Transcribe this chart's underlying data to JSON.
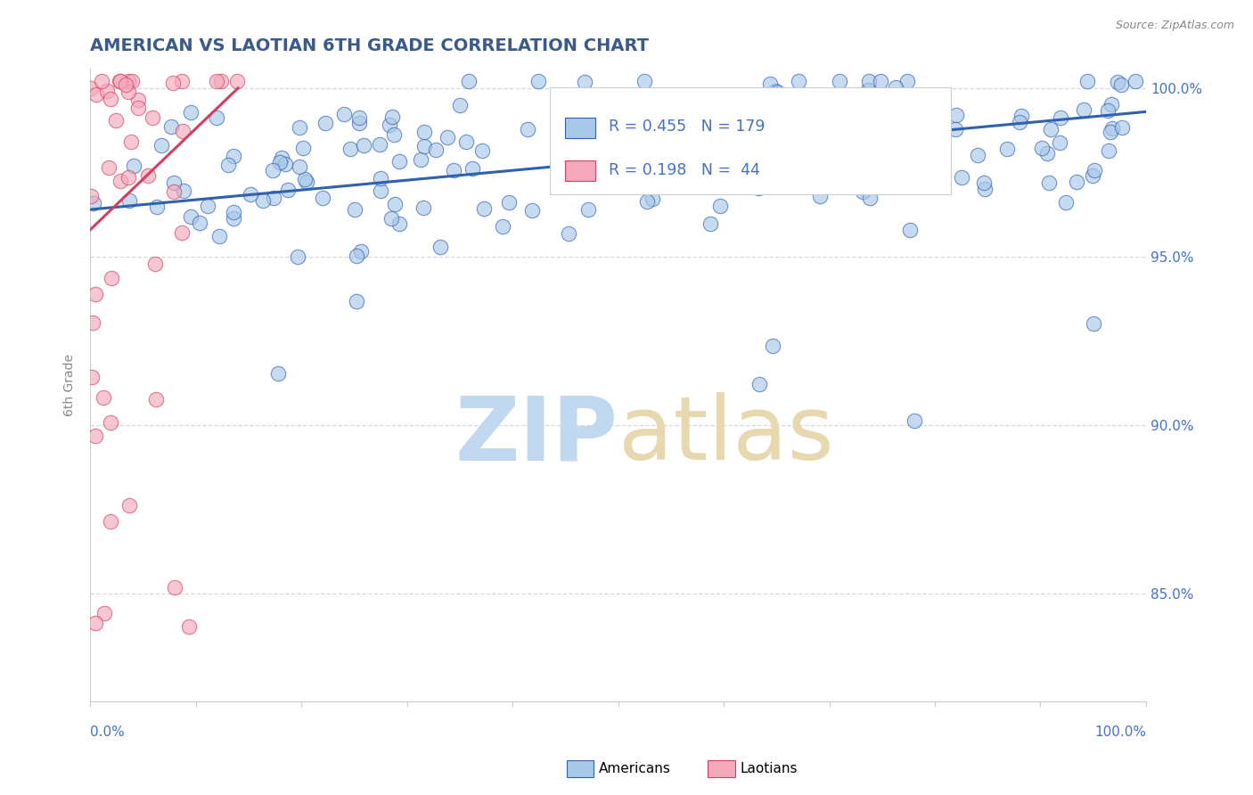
{
  "title": "AMERICAN VS LAOTIAN 6TH GRADE CORRELATION CHART",
  "source_text": "Source: ZipAtlas.com",
  "ylabel": "6th Grade",
  "r_american": 0.455,
  "n_american": 179,
  "r_laotian": 0.198,
  "n_laotian": 44,
  "american_color": "#a8c8e8",
  "laotian_color": "#f4a8bc",
  "trendline_american_color": "#3060b0",
  "trendline_laotian_color": "#d04060",
  "xlim": [
    0.0,
    1.0
  ],
  "ylim": [
    0.818,
    1.006
  ],
  "yticks": [
    0.85,
    0.9,
    0.95,
    1.0
  ],
  "ytick_labels": [
    "85.0%",
    "90.0%",
    "95.0%",
    "100.0%"
  ],
  "title_color": "#3a5a8a",
  "title_fontsize": 14,
  "axis_label_color": "#4472c4",
  "legend_r_color": "#4472c4",
  "watermark_zip_color": "#c0d8f0",
  "watermark_atlas_color": "#e8d8b0",
  "background_color": "#ffffff",
  "grid_color": "#d8d8d8"
}
